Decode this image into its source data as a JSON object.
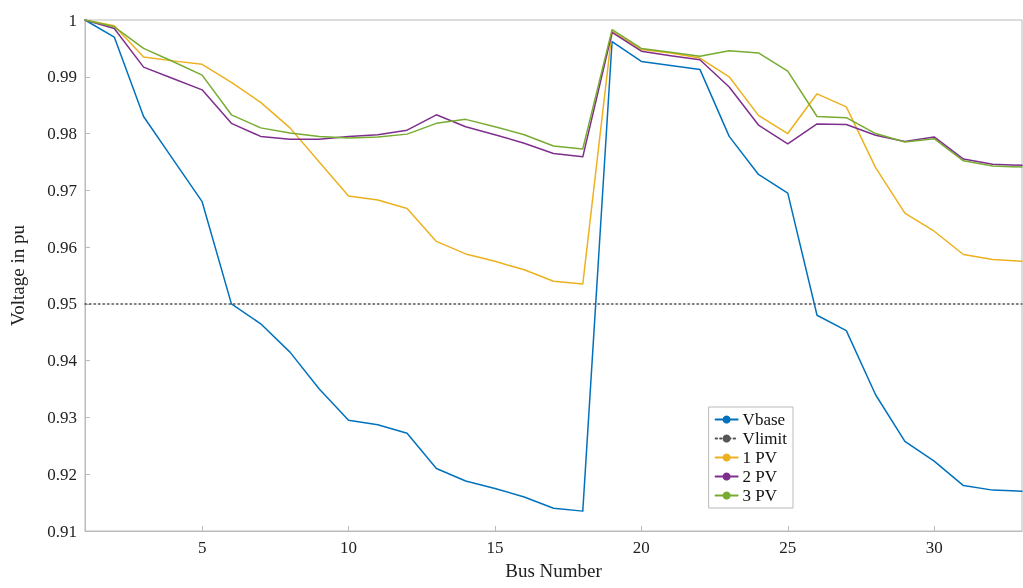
{
  "chart_data": {
    "type": "line",
    "xlabel": "Bus Number",
    "ylabel": "Voltage in pu",
    "x": [
      1,
      2,
      3,
      4,
      5,
      6,
      7,
      8,
      9,
      10,
      11,
      12,
      13,
      14,
      15,
      16,
      17,
      18,
      19,
      20,
      21,
      22,
      23,
      24,
      25,
      26,
      27,
      28,
      29,
      30,
      31,
      32,
      33
    ],
    "xlim": [
      1,
      33
    ],
    "xticks": [
      5,
      10,
      15,
      20,
      25,
      30
    ],
    "ylim": [
      0.91,
      1
    ],
    "yticks": [
      0.91,
      0.92,
      0.93,
      0.94,
      0.95,
      0.96,
      0.97,
      0.98,
      0.99,
      1
    ],
    "grid": false,
    "legend": "bottom right",
    "marker": "none",
    "series": [
      {
        "name": "Vbase",
        "color": "#0072bd",
        "values": [
          1.0,
          0.997,
          0.983,
          0.9755,
          0.968,
          0.95,
          0.9465,
          0.9415,
          0.935,
          0.9295,
          0.9287,
          0.9272,
          0.921,
          0.9188,
          0.9175,
          0.916,
          0.914,
          0.9135,
          0.9962,
          0.9927,
          0.992,
          0.9913,
          0.9795,
          0.9728,
          0.9695,
          0.948,
          0.9453,
          0.934,
          0.9258,
          0.9223,
          0.918,
          0.9172,
          0.917
        ]
      },
      {
        "name": "Vlimit",
        "color": "#555555",
        "line_style": "dotted",
        "x": [
          1,
          33
        ],
        "values": [
          0.95,
          0.95
        ]
      },
      {
        "name": "1 PV",
        "color": "#edb120",
        "values": [
          1.0,
          0.999,
          0.9935,
          0.9928,
          0.9922,
          0.989,
          0.9855,
          0.981,
          0.975,
          0.969,
          0.9683,
          0.9668,
          0.961,
          0.9588,
          0.9575,
          0.956,
          0.954,
          0.9535,
          0.998,
          0.9948,
          0.9942,
          0.9933,
          0.99,
          0.9832,
          0.98,
          0.987,
          0.9847,
          0.974,
          0.966,
          0.9628,
          0.9587,
          0.9578,
          0.9575
        ]
      },
      {
        "name": "2 PV",
        "color": "#7e2f8e",
        "values": [
          1.0,
          0.9985,
          0.9917,
          0.9897,
          0.9877,
          0.9818,
          0.9795,
          0.979,
          0.979,
          0.9795,
          0.9798,
          0.9806,
          0.9833,
          0.9812,
          0.9798,
          0.9783,
          0.9765,
          0.9759,
          0.9978,
          0.9945,
          0.9937,
          0.993,
          0.9882,
          0.9815,
          0.9782,
          0.9817,
          0.9816,
          0.9797,
          0.9786,
          0.9794,
          0.9755,
          0.9746,
          0.9744
        ]
      },
      {
        "name": "3 PV",
        "color": "#77ac30",
        "values": [
          1.0,
          0.9988,
          0.995,
          0.9927,
          0.9903,
          0.9833,
          0.981,
          0.9801,
          0.9795,
          0.9792,
          0.9794,
          0.9799,
          0.9818,
          0.9825,
          0.9812,
          0.9798,
          0.9778,
          0.9773,
          0.9983,
          0.995,
          0.9943,
          0.9936,
          0.9946,
          0.9942,
          0.991,
          0.983,
          0.9828,
          0.98,
          0.9785,
          0.9791,
          0.9752,
          0.9743,
          0.9741
        ]
      }
    ]
  }
}
